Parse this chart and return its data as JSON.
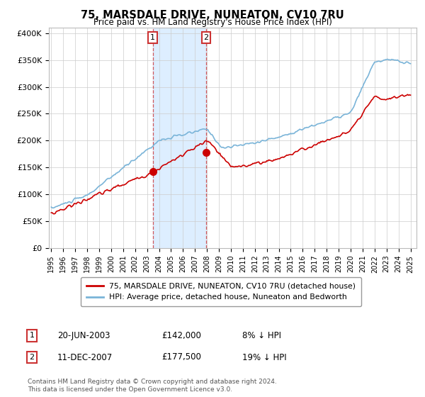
{
  "title": "75, MARSDALE DRIVE, NUNEATON, CV10 7RU",
  "subtitle": "Price paid vs. HM Land Registry's House Price Index (HPI)",
  "legend_line1": "75, MARSDALE DRIVE, NUNEATON, CV10 7RU (detached house)",
  "legend_line2": "HPI: Average price, detached house, Nuneaton and Bedworth",
  "footer": "Contains HM Land Registry data © Crown copyright and database right 2024.\nThis data is licensed under the Open Government Licence v3.0.",
  "purchases": [
    {
      "num": 1,
      "date": "20-JUN-2003",
      "price": 142000,
      "pct": "8%",
      "dir": "↓"
    },
    {
      "num": 2,
      "date": "11-DEC-2007",
      "price": 177500,
      "pct": "19%",
      "dir": "↓"
    }
  ],
  "purchase_dates_num": [
    2003.47,
    2007.94
  ],
  "purchase_prices": [
    142000,
    177500
  ],
  "hpi_color": "#7ab4d8",
  "price_color": "#cc0000",
  "highlight_color": "#ddeeff",
  "marker_box_color": "#cc3333",
  "ylim": [
    0,
    410000
  ],
  "yticks": [
    0,
    50000,
    100000,
    150000,
    200000,
    250000,
    300000,
    350000,
    400000
  ],
  "ytick_labels": [
    "£0",
    "£50K",
    "£100K",
    "£150K",
    "£200K",
    "£250K",
    "£300K",
    "£350K",
    "£400K"
  ]
}
